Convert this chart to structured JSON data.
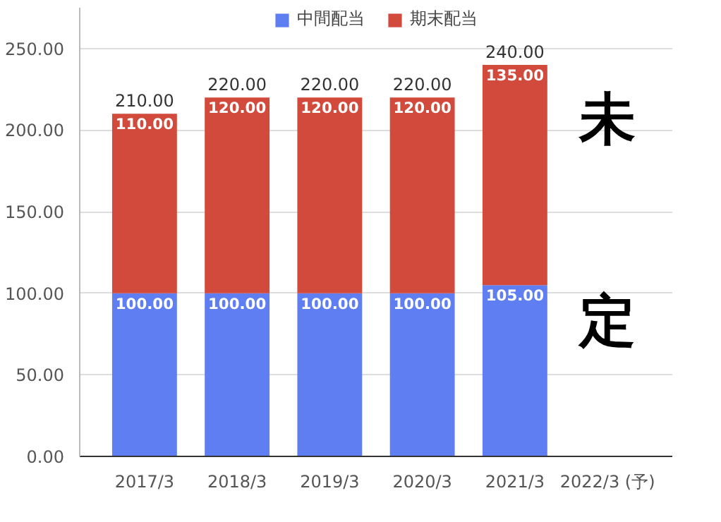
{
  "chart_data": {
    "type": "bar",
    "stacked": true,
    "categories": [
      "2017/3",
      "2018/3",
      "2019/3",
      "2020/3",
      "2021/3",
      "2022/3 (予)"
    ],
    "series": [
      {
        "name": "中間配当",
        "color": "#5f7ef2",
        "values": [
          100,
          100,
          100,
          100,
          105,
          null
        ],
        "value_labels": [
          "100.00",
          "100.00",
          "100.00",
          "100.00",
          "105.00",
          null
        ]
      },
      {
        "name": "期末配当",
        "color": "#d24a3c",
        "values": [
          110,
          120,
          120,
          120,
          135,
          null
        ],
        "value_labels": [
          "110.00",
          "120.00",
          "120.00",
          "120.00",
          "135.00",
          null
        ]
      }
    ],
    "totals": [
      "210.00",
      "220.00",
      "220.00",
      "220.00",
      "240.00",
      null
    ],
    "ylim": [
      0,
      275
    ],
    "yticks": [
      {
        "value": 0,
        "label": "0.00"
      },
      {
        "value": 50,
        "label": "50.00"
      },
      {
        "value": 100,
        "label": "100.00"
      },
      {
        "value": 150,
        "label": "150.00"
      },
      {
        "value": 200,
        "label": "200.00"
      },
      {
        "value": 250,
        "label": "250.00"
      }
    ],
    "grid": "y",
    "legend": "top",
    "annotations": [
      "未定"
    ]
  }
}
